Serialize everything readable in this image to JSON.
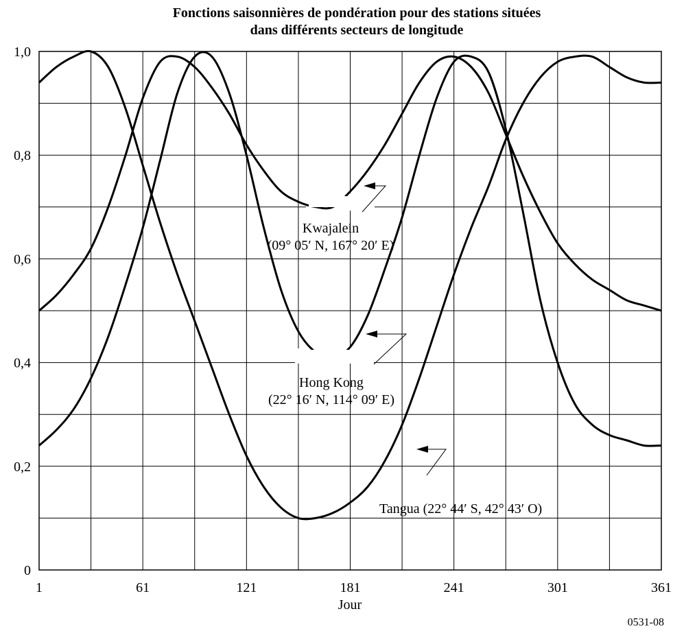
{
  "chart_data": {
    "type": "line",
    "title_line1": "Fonctions saisonnières de pondération pour des stations situées",
    "title_line2": "dans différents secteurs de longitude",
    "xlabel": "Jour",
    "ylabel": "",
    "xlim": [
      1,
      361
    ],
    "ylim": [
      0,
      1.0
    ],
    "xticks": [
      1,
      61,
      121,
      181,
      241,
      301,
      361
    ],
    "xtick_labels": [
      "1",
      "61",
      "121",
      "181",
      "241",
      "301",
      "361"
    ],
    "x_grid_step": 30,
    "yticks": [
      0,
      0.2,
      0.4,
      0.6,
      0.8,
      1.0
    ],
    "ytick_labels": [
      "0",
      "0,2",
      "0,4",
      "0,6",
      "0,8",
      "1,0"
    ],
    "y_grid_step": 0.1,
    "grid": true,
    "series": [
      {
        "name": "Kwajalein (09° 05′ N, 167° 20′ E)",
        "x": [
          1,
          11,
          21,
          31,
          41,
          51,
          61,
          71,
          81,
          91,
          101,
          111,
          121,
          131,
          141,
          151,
          161,
          171,
          181,
          191,
          201,
          211,
          221,
          231,
          241,
          251,
          261,
          271,
          281,
          291,
          301,
          311,
          321,
          331,
          341,
          351,
          361
        ],
        "y": [
          0.5,
          0.53,
          0.57,
          0.62,
          0.7,
          0.8,
          0.91,
          0.98,
          0.99,
          0.97,
          0.93,
          0.88,
          0.82,
          0.77,
          0.73,
          0.71,
          0.7,
          0.7,
          0.73,
          0.77,
          0.82,
          0.88,
          0.94,
          0.98,
          0.99,
          0.97,
          0.92,
          0.84,
          0.76,
          0.69,
          0.63,
          0.59,
          0.56,
          0.54,
          0.52,
          0.51,
          0.5
        ]
      },
      {
        "name": "Hong Kong (22° 16′ N, 114° 09′ E)",
        "x": [
          1,
          11,
          21,
          31,
          41,
          51,
          61,
          71,
          81,
          91,
          101,
          111,
          121,
          131,
          141,
          151,
          161,
          171,
          181,
          191,
          201,
          211,
          221,
          231,
          241,
          251,
          261,
          271,
          281,
          291,
          301,
          311,
          321,
          331,
          341,
          351,
          361
        ],
        "y": [
          0.24,
          0.27,
          0.31,
          0.37,
          0.45,
          0.55,
          0.66,
          0.79,
          0.92,
          0.99,
          0.99,
          0.92,
          0.8,
          0.66,
          0.54,
          0.46,
          0.42,
          0.41,
          0.43,
          0.49,
          0.58,
          0.68,
          0.8,
          0.91,
          0.98,
          0.99,
          0.96,
          0.85,
          0.69,
          0.52,
          0.4,
          0.32,
          0.28,
          0.26,
          0.25,
          0.24,
          0.24
        ]
      },
      {
        "name": "Tangua (22° 44′ S, 42° 43′ O)",
        "x": [
          1,
          11,
          21,
          31,
          41,
          51,
          61,
          71,
          81,
          91,
          101,
          111,
          121,
          131,
          141,
          151,
          161,
          171,
          181,
          191,
          201,
          211,
          221,
          231,
          241,
          251,
          261,
          271,
          281,
          291,
          301,
          311,
          321,
          331,
          341,
          351,
          361
        ],
        "y": [
          0.94,
          0.97,
          0.99,
          1.0,
          0.97,
          0.89,
          0.78,
          0.67,
          0.57,
          0.48,
          0.39,
          0.3,
          0.22,
          0.16,
          0.12,
          0.1,
          0.1,
          0.11,
          0.13,
          0.16,
          0.21,
          0.28,
          0.37,
          0.47,
          0.57,
          0.66,
          0.74,
          0.83,
          0.9,
          0.95,
          0.98,
          0.99,
          0.99,
          0.97,
          0.95,
          0.94,
          0.94
        ]
      }
    ],
    "annotations": [
      {
        "line1": "Kwajalein",
        "line2": "(09° 05′ N, 167° 20′ E)"
      },
      {
        "line1": "Hong Kong",
        "line2": "(22° 16′ N, 114° 09′ E)"
      },
      {
        "line1": "Tangua (22° 44′ S, 42° 43′ O)"
      }
    ],
    "figure_id": "0531-08"
  }
}
